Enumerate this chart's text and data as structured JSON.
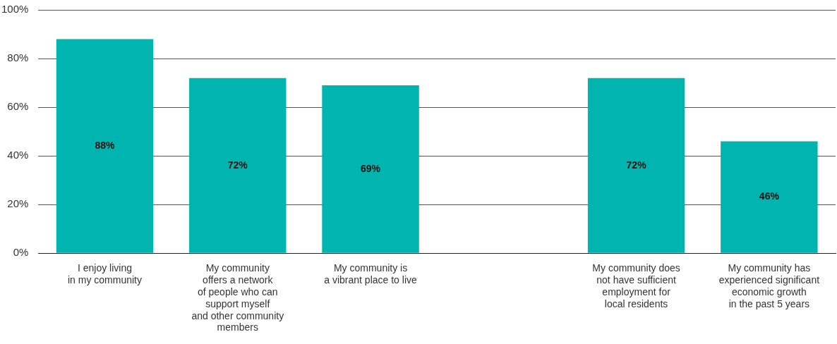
{
  "chart_data": {
    "type": "bar",
    "categories": [
      "I enjoy living\nin my community",
      "My community\noffers a network\nof people who can\nsupport myself\nand other community\nmembers",
      "My community is\na vibrant place to live",
      null,
      "My community does\nnot have sufficient\nemployment for\nlocal residents",
      "My community has\nexperienced significant\neconomic growth\nin the past 5 years"
    ],
    "values": [
      88,
      72,
      69,
      null,
      72,
      46
    ],
    "value_labels": [
      "88%",
      "72%",
      "69%",
      null,
      "72%",
      "46%"
    ],
    "color": "#00b5af",
    "ylim": [
      0,
      100
    ],
    "yticks": [
      {
        "value": 0,
        "label": "0%"
      },
      {
        "value": 20,
        "label": "20%"
      },
      {
        "value": 40,
        "label": "40%"
      },
      {
        "value": 60,
        "label": "60%"
      },
      {
        "value": 80,
        "label": "80%"
      },
      {
        "value": 100,
        "label": "100%"
      }
    ],
    "grid": "y"
  }
}
